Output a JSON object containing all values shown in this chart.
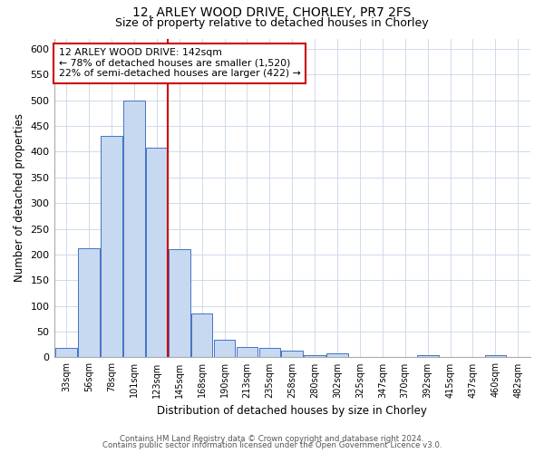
{
  "title_line1": "12, ARLEY WOOD DRIVE, CHORLEY, PR7 2FS",
  "title_line2": "Size of property relative to detached houses in Chorley",
  "xlabel": "Distribution of detached houses by size in Chorley",
  "ylabel": "Number of detached properties",
  "categories": [
    "33sqm",
    "56sqm",
    "78sqm",
    "101sqm",
    "123sqm",
    "145sqm",
    "168sqm",
    "190sqm",
    "213sqm",
    "235sqm",
    "258sqm",
    "280sqm",
    "302sqm",
    "325sqm",
    "347sqm",
    "370sqm",
    "392sqm",
    "415sqm",
    "437sqm",
    "460sqm",
    "482sqm"
  ],
  "values": [
    18,
    213,
    430,
    500,
    408,
    210,
    85,
    35,
    20,
    18,
    13,
    5,
    7,
    0,
    0,
    0,
    5,
    0,
    0,
    5,
    0
  ],
  "bar_color": "#c6d9f1",
  "bar_edge_color": "#4472c4",
  "vline_color": "#cc0000",
  "vline_index": 4.5,
  "annotation_text": "12 ARLEY WOOD DRIVE: 142sqm\n← 78% of detached houses are smaller (1,520)\n22% of semi-detached houses are larger (422) →",
  "annotation_box_color": "#ffffff",
  "annotation_box_edge": "#cc0000",
  "ylim": [
    0,
    620
  ],
  "yticks": [
    0,
    50,
    100,
    150,
    200,
    250,
    300,
    350,
    400,
    450,
    500,
    550,
    600
  ],
  "footer_line1": "Contains HM Land Registry data © Crown copyright and database right 2024.",
  "footer_line2": "Contains public sector information licensed under the Open Government Licence v3.0.",
  "background_color": "#ffffff",
  "grid_color": "#c8d4e8"
}
